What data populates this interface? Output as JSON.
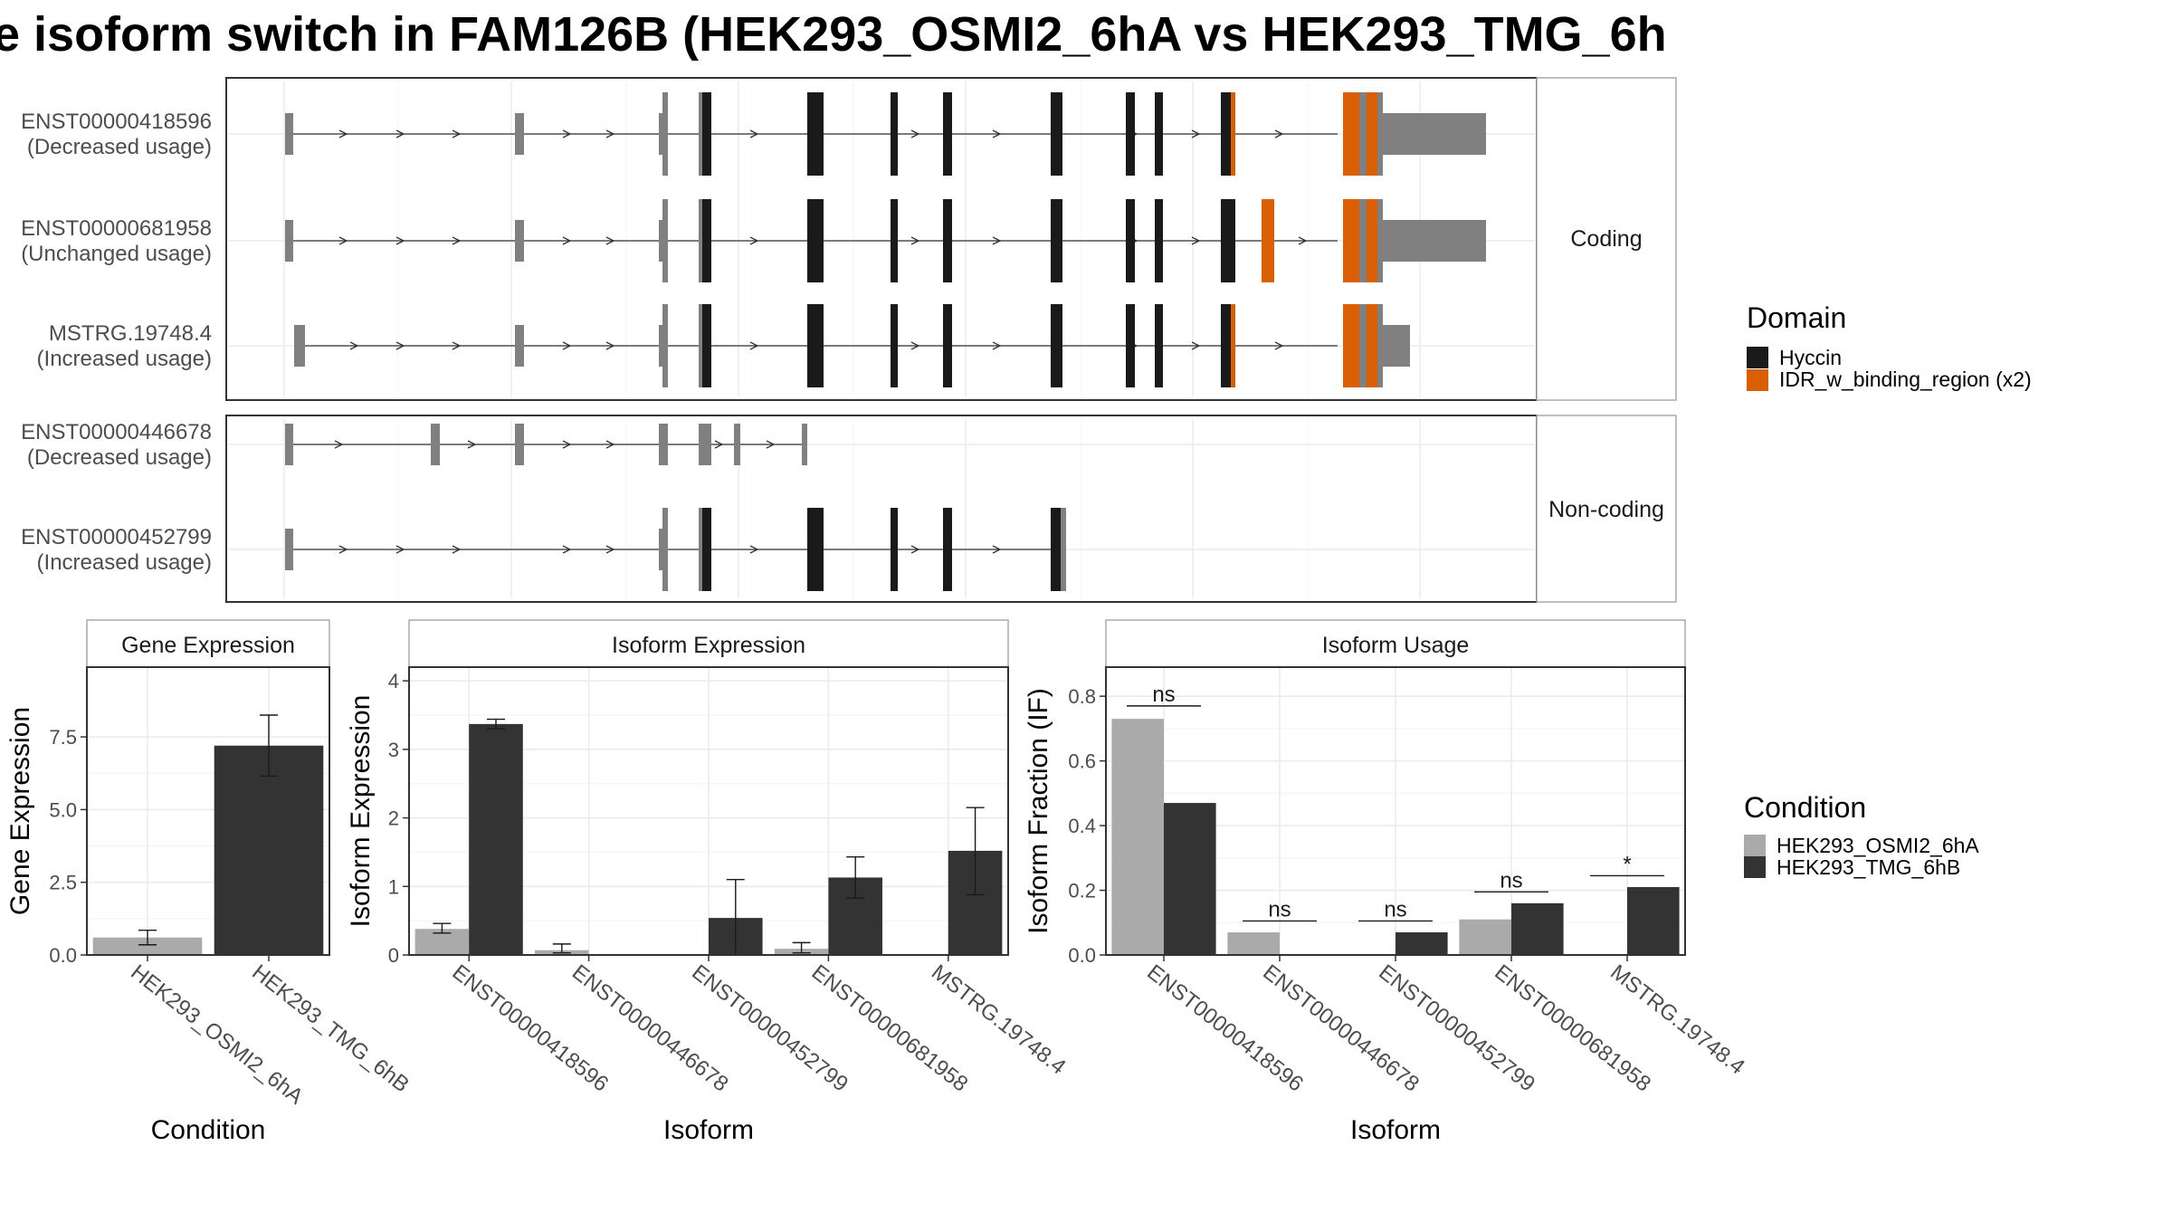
{
  "title": "e isoform switch in FAM126B (HEK293_OSMI2_6hA vs HEK293_TMG_6h",
  "colors": {
    "utr": "#808080",
    "hyccin": "#1a1a1a",
    "idr": "#d95f02",
    "cond_a": "#aaaaaa",
    "cond_b": "#333333",
    "panel_border": "#333333",
    "strip_bg": "#ffffff",
    "grid": "#ebebeb"
  },
  "transcript_panel": {
    "groups": [
      {
        "label": "Coding",
        "tracks": [
          {
            "id": "ENST00000418596",
            "status": "(Decreased usage)"
          },
          {
            "id": "ENST00000681958",
            "status": "(Unchanged usage)"
          },
          {
            "id": "MSTRG.19748.4",
            "status": "(Increased usage)"
          }
        ]
      },
      {
        "label": "Non-coding",
        "tracks": [
          {
            "id": "ENST00000446678",
            "status": "(Decreased usage)"
          },
          {
            "id": "ENST00000452799",
            "status": "(Increased usage)"
          }
        ]
      }
    ],
    "domain_legend": {
      "title": "Domain",
      "items": [
        {
          "label": "Hyccin",
          "color": "#1a1a1a"
        },
        {
          "label": "IDR_w_binding_region (x2)",
          "color": "#d95f02"
        }
      ]
    }
  },
  "condition_legend": {
    "title": "Condition",
    "items": [
      {
        "label": "HEK293_OSMI2_6hA",
        "color": "#aaaaaa"
      },
      {
        "label": "HEK293_TMG_6hB",
        "color": "#333333"
      }
    ]
  },
  "chart_data": [
    {
      "type": "bar",
      "title": "Gene Expression",
      "xlabel": "Condition",
      "ylabel": "Gene Expression",
      "ylim": [
        0,
        9.9
      ],
      "yticks": [
        0.0,
        2.5,
        5.0,
        7.5
      ],
      "ytick_labels": [
        "0.0",
        "2.5",
        "5.0",
        "7.5"
      ],
      "categories": [
        "HEK293_OSMI2_6hA",
        "HEK293_TMG_6hB"
      ],
      "values": [
        0.6,
        7.2
      ],
      "error_low": [
        0.35,
        6.15
      ],
      "error_high": [
        0.85,
        8.25
      ]
    },
    {
      "type": "bar",
      "title": "Isoform Expression",
      "xlabel": "Isoform",
      "ylabel": "Isoform Expression",
      "ylim": [
        0,
        4.2
      ],
      "yticks": [
        0,
        1,
        2,
        3,
        4
      ],
      "ytick_labels": [
        "0",
        "1",
        "2",
        "3",
        "4"
      ],
      "categories": [
        "ENST00000418596",
        "ENST00000446678",
        "ENST00000452799",
        "ENST00000681958",
        "MSTRG.19748.4"
      ],
      "series": [
        {
          "name": "HEK293_OSMI2_6hA",
          "values": [
            0.38,
            0.07,
            0.0,
            0.09,
            0.0
          ],
          "error_low": [
            0.32,
            0.03,
            0.0,
            0.03,
            0.0
          ],
          "error_high": [
            0.46,
            0.16,
            0.0,
            0.18,
            0.0
          ]
        },
        {
          "name": "HEK293_TMG_6hB",
          "values": [
            3.37,
            0.0,
            0.54,
            1.13,
            1.52
          ],
          "error_low": [
            3.3,
            0.0,
            0.0,
            0.83,
            0.88
          ],
          "error_high": [
            3.44,
            0.0,
            1.1,
            1.43,
            2.15
          ]
        }
      ]
    },
    {
      "type": "bar",
      "title": "Isoform Usage",
      "xlabel": "Isoform",
      "ylabel": "Isoform Fraction (IF)",
      "ylim": [
        0,
        0.89
      ],
      "yticks": [
        0.0,
        0.2,
        0.4,
        0.6,
        0.8
      ],
      "ytick_labels": [
        "0.0",
        "0.2",
        "0.4",
        "0.6",
        "0.8"
      ],
      "categories": [
        "ENST00000418596",
        "ENST00000446678",
        "ENST00000452799",
        "ENST00000681958",
        "MSTRG.19748.4"
      ],
      "series": [
        {
          "name": "HEK293_OSMI2_6hA",
          "values": [
            0.73,
            0.07,
            0.0,
            0.11,
            0.0
          ]
        },
        {
          "name": "HEK293_TMG_6hB",
          "values": [
            0.47,
            0.0,
            0.07,
            0.16,
            0.21
          ]
        }
      ],
      "significance": [
        {
          "label": "ns",
          "level": 0.77
        },
        {
          "label": "ns",
          "level": 0.105
        },
        {
          "label": "ns",
          "level": 0.105
        },
        {
          "label": "ns",
          "level": 0.195
        },
        {
          "label": "*",
          "level": 0.245
        }
      ]
    }
  ]
}
